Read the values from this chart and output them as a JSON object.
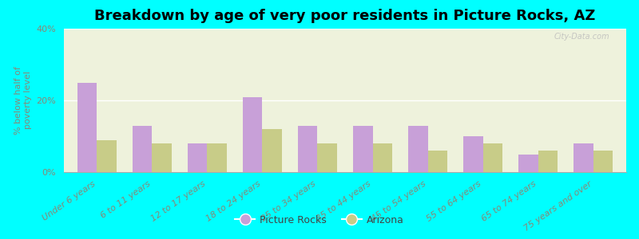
{
  "title": "Breakdown by age of very poor residents in Picture Rocks, AZ",
  "ylabel": "% below half of\npoverty level",
  "categories": [
    "Under 6 years",
    "6 to 11 years",
    "12 to 17 years",
    "18 to 24 years",
    "25 to 34 years",
    "35 to 44 years",
    "45 to 54 years",
    "55 to 64 years",
    "65 to 74 years",
    "75 years and over"
  ],
  "picture_rocks": [
    25,
    13,
    8,
    21,
    13,
    13,
    13,
    10,
    5,
    8
  ],
  "arizona": [
    9,
    8,
    8,
    12,
    8,
    8,
    6,
    8,
    6,
    6
  ],
  "bar_color_pr": "#c8a0d8",
  "bar_color_az": "#c8cc88",
  "ylim": [
    0,
    40
  ],
  "yticks": [
    0,
    20,
    40
  ],
  "ytick_labels": [
    "0%",
    "20%",
    "40%"
  ],
  "bg_outer": "#00ffff",
  "bg_plot": "#eef2dc",
  "grid_color": "#ffffff",
  "legend_pr": "Picture Rocks",
  "legend_az": "Arizona",
  "bar_width": 0.35,
  "watermark": "City-Data.com",
  "title_fontsize": 13,
  "axis_label_fontsize": 8,
  "tick_fontsize": 8,
  "tick_color": "#888877",
  "ylabel_color": "#888877"
}
